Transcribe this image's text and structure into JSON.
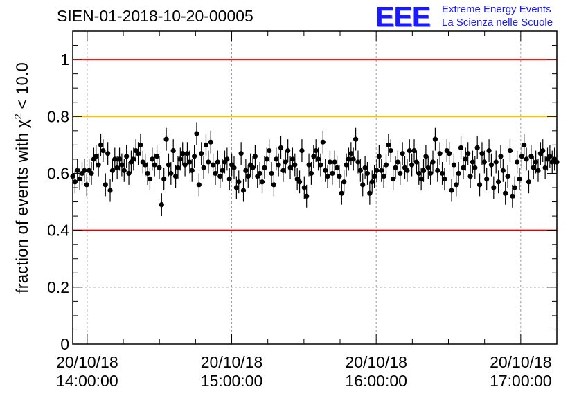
{
  "chart_data": {
    "type": "scatter",
    "title": "SIEN-01-2018-10-20-00005",
    "ylabel_prefix": "fraction of events with ",
    "ylabel_chi": "χ",
    "ylabel_exp": "2",
    "ylabel_suffix": " < 10.0",
    "xlabel": "",
    "xlim": [
      -0.1,
      3.25
    ],
    "ylim": [
      0,
      1.1
    ],
    "yticks": [
      {
        "value": 0,
        "label": "0"
      },
      {
        "value": 0.2,
        "label": "0.2"
      },
      {
        "value": 0.4,
        "label": "0.4"
      },
      {
        "value": 0.6,
        "label": "0.6"
      },
      {
        "value": 0.8,
        "label": "0.8"
      },
      {
        "value": 1,
        "label": "1"
      }
    ],
    "xticks": [
      {
        "value": 0,
        "date": "20/10/18",
        "time": "14:00:00"
      },
      {
        "value": 1,
        "date": "20/10/18",
        "time": "15:00:00"
      },
      {
        "value": 2,
        "date": "20/10/18",
        "time": "16:00:00"
      },
      {
        "value": 3,
        "date": "20/10/18",
        "time": "17:00:00"
      }
    ],
    "x_units": "hours after 20/10/18 14:00:00",
    "reference_lines": [
      {
        "y": 1.0,
        "color": "#e00000"
      },
      {
        "y": 0.8,
        "color": "#ffc000"
      },
      {
        "y": 0.4,
        "color": "#e00000"
      }
    ],
    "series": [
      {
        "name": "fraction",
        "x_start": -0.1,
        "x_end": 3.25,
        "error": 0.04,
        "values": [
          0.59,
          0.57,
          0.61,
          0.58,
          0.6,
          0.61,
          0.56,
          0.61,
          0.6,
          0.65,
          0.66,
          0.63,
          0.7,
          0.68,
          0.56,
          0.67,
          0.54,
          0.61,
          0.65,
          0.62,
          0.65,
          0.63,
          0.61,
          0.66,
          0.6,
          0.64,
          0.65,
          0.68,
          0.67,
          0.7,
          0.64,
          0.63,
          0.6,
          0.58,
          0.65,
          0.63,
          0.66,
          0.62,
          0.49,
          0.58,
          0.72,
          0.63,
          0.6,
          0.68,
          0.59,
          0.62,
          0.65,
          0.67,
          0.63,
          0.67,
          0.64,
          0.61,
          0.66,
          0.74,
          0.56,
          0.67,
          0.62,
          0.7,
          0.64,
          0.71,
          0.63,
          0.6,
          0.64,
          0.59,
          0.61,
          0.64,
          0.65,
          0.58,
          0.63,
          0.62,
          0.55,
          0.57,
          0.67,
          0.54,
          0.61,
          0.59,
          0.63,
          0.62,
          0.66,
          0.59,
          0.6,
          0.57,
          0.62,
          0.65,
          0.68,
          0.6,
          0.56,
          0.65,
          0.63,
          0.69,
          0.61,
          0.64,
          0.68,
          0.62,
          0.65,
          0.63,
          0.58,
          0.57,
          0.68,
          0.55,
          0.52,
          0.63,
          0.6,
          0.66,
          0.68,
          0.65,
          0.63,
          0.71,
          0.61,
          0.59,
          0.64,
          0.6,
          0.64,
          0.62,
          0.59,
          0.53,
          0.57,
          0.63,
          0.65,
          0.67,
          0.65,
          0.72,
          0.64,
          0.61,
          0.56,
          0.62,
          0.6,
          0.53,
          0.57,
          0.59,
          0.61,
          0.66,
          0.61,
          0.59,
          0.63,
          0.7,
          0.68,
          0.58,
          0.62,
          0.64,
          0.6,
          0.67,
          0.62,
          0.61,
          0.68,
          0.63,
          0.68,
          0.64,
          0.6,
          0.58,
          0.61,
          0.66,
          0.62,
          0.6,
          0.64,
          0.72,
          0.61,
          0.67,
          0.6,
          0.58,
          0.68,
          0.67,
          0.54,
          0.63,
          0.56,
          0.6,
          0.69,
          0.62,
          0.65,
          0.67,
          0.59,
          0.64,
          0.62,
          0.69,
          0.56,
          0.67,
          0.64,
          0.58,
          0.68,
          0.63,
          0.55,
          0.64,
          0.57,
          0.66,
          0.61,
          0.53,
          0.59,
          0.68,
          0.52,
          0.55,
          0.64,
          0.58,
          0.66,
          0.7,
          0.65,
          0.57,
          0.66,
          0.62,
          0.64,
          0.61,
          0.67,
          0.68,
          0.62,
          0.65,
          0.66,
          0.64,
          0.65,
          0.64
        ]
      }
    ]
  },
  "logo": {
    "mark": "EEE",
    "line1": "Extreme Energy Events",
    "line2": "La Scienza nelle Scuole"
  }
}
